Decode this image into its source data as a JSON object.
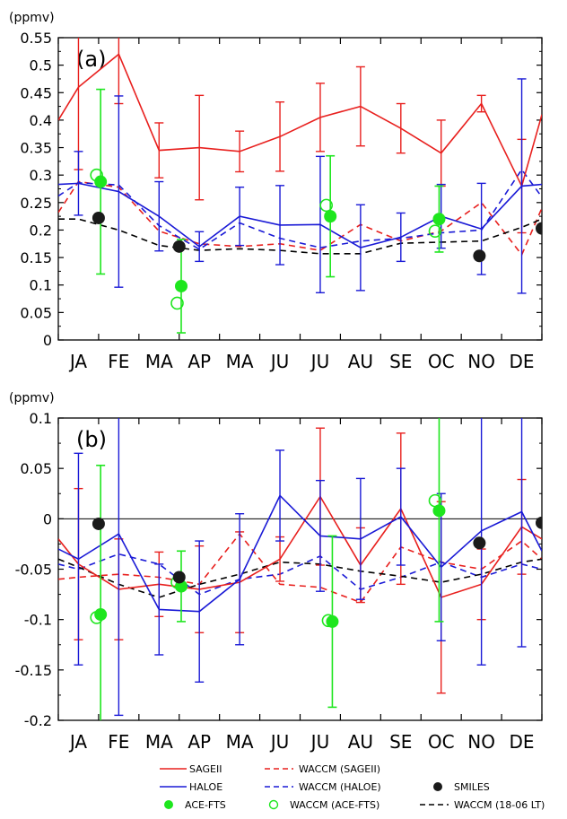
{
  "colors": {
    "SAGEII": "#e8201e",
    "HALOE": "#1a1ad6",
    "ACE": "#1ee61e",
    "SMILES": "#1a1a1a",
    "WACCM_LT": "#000000"
  },
  "legend": [
    {
      "key": "SAGEII",
      "label": "SAGEII",
      "style": "solid",
      "color": "#e8201e"
    },
    {
      "key": "WACCM_SAGEII",
      "label": "WACCM (SAGEII)",
      "style": "dash",
      "color": "#e8201e"
    },
    {
      "key": "HALOE",
      "label": "HALOE",
      "style": "solid",
      "color": "#1a1ad6"
    },
    {
      "key": "WACCM_HALOE",
      "label": "WACCM (HALOE)",
      "style": "dash",
      "color": "#1a1ad6"
    },
    {
      "key": "SMILES",
      "label": "SMILES",
      "style": "dot-filled",
      "color": "#1a1a1a"
    },
    {
      "key": "ACE",
      "label": "ACE-FTS",
      "style": "dot-filled",
      "color": "#1ee61e"
    },
    {
      "key": "WACCM_ACE",
      "label": "WACCM (ACE-FTS)",
      "style": "dot-open",
      "color": "#1ee61e"
    },
    {
      "key": "WACCM_LT",
      "label": "WACCM (18-06 LT)",
      "style": "dash",
      "color": "#000000"
    }
  ],
  "chart_data": [
    {
      "type": "line",
      "panel_label": "(a)",
      "ylabel": "(ppmv)",
      "ylim": [
        0,
        0.55
      ],
      "yticks": [
        0,
        0.05,
        0.1,
        0.15,
        0.2,
        0.25,
        0.3,
        0.35,
        0.4,
        0.45,
        0.5,
        0.55
      ],
      "ytick_labels": [
        "0",
        "0.05",
        "0.1",
        "0.15",
        "0.2",
        "0.25",
        "0.3",
        "0.35",
        "0.4",
        "0.45",
        "0.5",
        "0.55"
      ],
      "xlim": [
        0,
        12
      ],
      "month_labels": [
        "JA",
        "FE",
        "MA",
        "AP",
        "MA",
        "JU",
        "JU",
        "AU",
        "SE",
        "OC",
        "NO",
        "DE"
      ],
      "series": [
        {
          "name": "SAGEII",
          "color": "#e8201e",
          "dash": false,
          "x": [
            0,
            0.5,
            1.5,
            2.5,
            3.5,
            4.5,
            5.5,
            6.5,
            7.5,
            8.5,
            9.5,
            10.5,
            11.5,
            12
          ],
          "y": [
            0.4,
            0.46,
            0.52,
            0.345,
            0.35,
            0.343,
            0.37,
            0.405,
            0.425,
            0.385,
            0.34,
            0.43,
            0.28,
            0.41
          ],
          "err": [
            null,
            0.15,
            0.09,
            0.05,
            0.095,
            0.037,
            0.063,
            0.062,
            0.072,
            0.045,
            0.06,
            0.015,
            0.085,
            null
          ]
        },
        {
          "name": "HALOE",
          "color": "#1a1ad6",
          "dash": false,
          "x": [
            0,
            0.5,
            1.5,
            2.5,
            3.5,
            4.5,
            5.5,
            6.5,
            7.5,
            8.5,
            9.5,
            10.5,
            11.5,
            12
          ],
          "y": [
            0.283,
            0.285,
            0.27,
            0.225,
            0.17,
            0.225,
            0.209,
            0.21,
            0.168,
            0.187,
            0.225,
            0.202,
            0.28,
            0.283
          ],
          "err": [
            null,
            0.058,
            0.174,
            0.063,
            0.027,
            0.053,
            0.072,
            0.124,
            0.078,
            0.044,
            0.058,
            0.083,
            0.195,
            null
          ]
        },
        {
          "name": "WACCM (SAGEII)",
          "color": "#e8201e",
          "dash": true,
          "x": [
            0,
            0.5,
            1.5,
            2.5,
            3.5,
            4.5,
            5.5,
            6.5,
            7.5,
            8.5,
            9.5,
            10.5,
            11.5,
            12
          ],
          "y": [
            0.232,
            0.288,
            0.278,
            0.198,
            0.175,
            0.17,
            0.175,
            0.163,
            0.21,
            0.18,
            0.198,
            0.25,
            0.155,
            0.24
          ]
        },
        {
          "name": "WACCM (HALOE)",
          "color": "#1a1ad6",
          "dash": true,
          "x": [
            0,
            0.5,
            1.5,
            2.5,
            3.5,
            4.5,
            5.5,
            6.5,
            7.5,
            8.5,
            9.5,
            10.5,
            11.5,
            12
          ],
          "y": [
            0.262,
            0.286,
            0.282,
            0.208,
            0.165,
            0.213,
            0.185,
            0.168,
            0.18,
            0.185,
            0.195,
            0.2,
            0.31,
            0.26
          ]
        },
        {
          "name": "WACCM (18-06 LT)",
          "color": "#000000",
          "dash": true,
          "x": [
            0,
            0.5,
            1.5,
            2.5,
            3.5,
            4.5,
            5.5,
            6.5,
            7.5,
            8.5,
            9.5,
            10.5,
            11.5,
            12
          ],
          "y": [
            0.22,
            0.22,
            0.2,
            0.172,
            0.163,
            0.166,
            0.163,
            0.157,
            0.157,
            0.176,
            0.178,
            0.18,
            0.205,
            0.22
          ]
        }
      ],
      "points": [
        {
          "name": "ACE-FTS",
          "style": "filled",
          "color": "#1ee61e",
          "x": [
            1.05,
            3.05,
            6.75,
            9.45
          ],
          "y": [
            0.288,
            0.098,
            0.225,
            0.22
          ],
          "err": [
            0.168,
            0.085,
            0.11,
            0.06
          ]
        },
        {
          "name": "WACCM (ACE-FTS)",
          "style": "open",
          "color": "#1ee61e",
          "x": [
            0.95,
            2.95,
            6.65,
            9.35
          ],
          "y": [
            0.3,
            0.067,
            0.245,
            0.198
          ]
        },
        {
          "name": "SMILES",
          "style": "filled",
          "color": "#1a1a1a",
          "x": [
            1.0,
            3.0,
            10.45,
            12.0
          ],
          "y": [
            0.222,
            0.17,
            0.153,
            0.203
          ]
        }
      ]
    },
    {
      "type": "line",
      "panel_label": "(b)",
      "ylabel": "(ppmv)",
      "ylim": [
        -0.2,
        0.1
      ],
      "yticks": [
        -0.2,
        -0.15,
        -0.1,
        -0.05,
        0,
        0.05,
        0.1
      ],
      "ytick_labels": [
        "-0.2",
        "-0.15",
        "-0.1",
        "-0.05",
        "0",
        "0.05",
        "0.1"
      ],
      "zero_line": true,
      "xlim": [
        0,
        12
      ],
      "month_labels": [
        "JA",
        "FE",
        "MA",
        "AP",
        "MA",
        "JU",
        "JU",
        "AU",
        "SE",
        "OC",
        "NO",
        "DE"
      ],
      "series": [
        {
          "name": "SAGEII",
          "color": "#e8201e",
          "dash": false,
          "x": [
            0,
            0.5,
            1.5,
            2.5,
            3.5,
            4.5,
            5.5,
            6.5,
            7.5,
            8.5,
            9.5,
            10.5,
            11.5,
            12
          ],
          "y": [
            -0.02,
            -0.045,
            -0.07,
            -0.065,
            -0.07,
            -0.063,
            -0.04,
            0.022,
            -0.046,
            0.01,
            -0.078,
            -0.065,
            -0.008,
            -0.02
          ],
          "err": [
            null,
            0.075,
            0.05,
            0.032,
            0.043,
            0.05,
            0.022,
            0.068,
            0.037,
            0.075,
            0.095,
            0.035,
            0.047,
            null
          ]
        },
        {
          "name": "HALOE",
          "color": "#1a1ad6",
          "dash": false,
          "x": [
            0,
            0.5,
            1.5,
            2.5,
            3.5,
            4.5,
            5.5,
            6.5,
            7.5,
            8.5,
            9.5,
            10.5,
            11.5,
            12
          ],
          "y": [
            -0.03,
            -0.04,
            -0.015,
            -0.09,
            -0.092,
            -0.06,
            0.023,
            -0.017,
            -0.02,
            0.002,
            -0.048,
            -0.012,
            0.007,
            -0.032
          ],
          "err": [
            null,
            0.105,
            0.18,
            0.045,
            0.07,
            0.065,
            0.045,
            0.055,
            0.06,
            0.048,
            0.073,
            0.133,
            0.134,
            null
          ]
        },
        {
          "name": "WACCM (SAGEII)",
          "color": "#e8201e",
          "dash": true,
          "x": [
            0,
            0.5,
            1.5,
            2.5,
            3.5,
            4.5,
            5.5,
            6.5,
            7.5,
            8.5,
            9.5,
            10.5,
            11.5,
            12
          ],
          "y": [
            -0.06,
            -0.058,
            -0.055,
            -0.058,
            -0.065,
            -0.015,
            -0.065,
            -0.068,
            -0.083,
            -0.028,
            -0.043,
            -0.05,
            -0.022,
            -0.04
          ]
        },
        {
          "name": "WACCM (HALOE)",
          "color": "#1a1ad6",
          "dash": true,
          "x": [
            0,
            0.5,
            1.5,
            2.5,
            3.5,
            4.5,
            5.5,
            6.5,
            7.5,
            8.5,
            9.5,
            10.5,
            11.5,
            12
          ],
          "y": [
            -0.045,
            -0.05,
            -0.035,
            -0.045,
            -0.075,
            -0.06,
            -0.055,
            -0.037,
            -0.07,
            -0.058,
            -0.043,
            -0.058,
            -0.045,
            -0.05
          ]
        },
        {
          "name": "WACCM (18-06 LT)",
          "color": "#000000",
          "dash": true,
          "x": [
            0,
            0.5,
            1.5,
            2.5,
            3.5,
            4.5,
            5.5,
            6.5,
            7.5,
            8.5,
            9.5,
            10.5,
            11.5,
            12
          ],
          "y": [
            -0.04,
            -0.048,
            -0.065,
            -0.078,
            -0.065,
            -0.055,
            -0.043,
            -0.045,
            -0.052,
            -0.057,
            -0.063,
            -0.055,
            -0.043,
            -0.04
          ]
        }
      ],
      "points": [
        {
          "name": "ACE-FTS",
          "style": "filled",
          "color": "#1ee61e",
          "x": [
            1.05,
            3.05,
            6.8,
            9.45
          ],
          "y": [
            -0.095,
            -0.067,
            -0.102,
            0.008
          ],
          "err": [
            0.148,
            0.035,
            0.085,
            0.11
          ]
        },
        {
          "name": "WACCM (ACE-FTS)",
          "style": "open",
          "color": "#1ee61e",
          "x": [
            0.95,
            2.95,
            6.7,
            9.35
          ],
          "y": [
            -0.098,
            -0.063,
            -0.101,
            0.018
          ]
        },
        {
          "name": "SMILES",
          "style": "filled",
          "color": "#1a1a1a",
          "x": [
            1.0,
            3.0,
            10.45,
            12.0
          ],
          "y": [
            -0.005,
            -0.058,
            -0.024,
            -0.004
          ]
        }
      ]
    }
  ]
}
